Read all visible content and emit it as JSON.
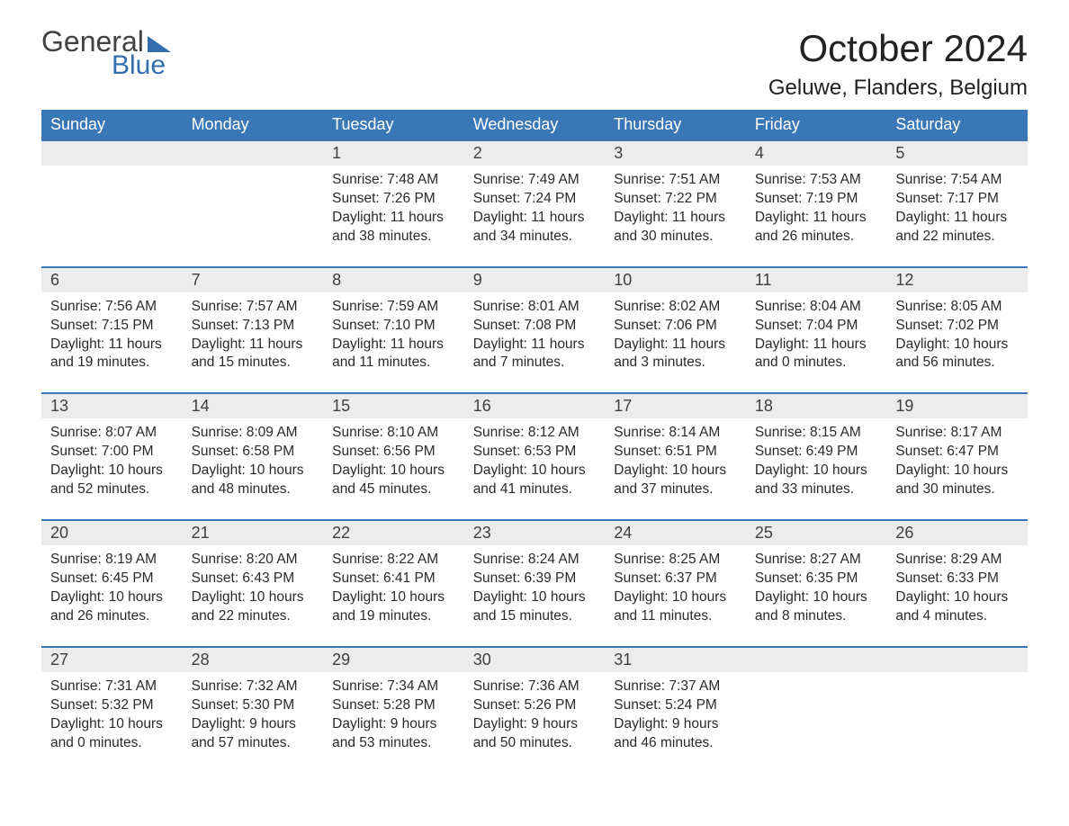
{
  "logo": {
    "line1": "General",
    "line2": "Blue"
  },
  "title": "October 2024",
  "location": "Geluwe, Flanders, Belgium",
  "colors": {
    "header_bg": "#3a77b6",
    "header_text": "#ffffff",
    "daynum_bg": "#ececec",
    "row_divider": "#3a77b6",
    "logo_accent": "#336eaf",
    "body_text": "#2a2a2a",
    "page_bg": "#ffffff"
  },
  "calendar": {
    "type": "table",
    "columns": [
      "Sunday",
      "Monday",
      "Tuesday",
      "Wednesday",
      "Thursday",
      "Friday",
      "Saturday"
    ],
    "start_day_index": 2,
    "days": [
      {
        "n": 1,
        "sunrise": "7:48 AM",
        "sunset": "7:26 PM",
        "daylight": "11 hours and 38 minutes."
      },
      {
        "n": 2,
        "sunrise": "7:49 AM",
        "sunset": "7:24 PM",
        "daylight": "11 hours and 34 minutes."
      },
      {
        "n": 3,
        "sunrise": "7:51 AM",
        "sunset": "7:22 PM",
        "daylight": "11 hours and 30 minutes."
      },
      {
        "n": 4,
        "sunrise": "7:53 AM",
        "sunset": "7:19 PM",
        "daylight": "11 hours and 26 minutes."
      },
      {
        "n": 5,
        "sunrise": "7:54 AM",
        "sunset": "7:17 PM",
        "daylight": "11 hours and 22 minutes."
      },
      {
        "n": 6,
        "sunrise": "7:56 AM",
        "sunset": "7:15 PM",
        "daylight": "11 hours and 19 minutes."
      },
      {
        "n": 7,
        "sunrise": "7:57 AM",
        "sunset": "7:13 PM",
        "daylight": "11 hours and 15 minutes."
      },
      {
        "n": 8,
        "sunrise": "7:59 AM",
        "sunset": "7:10 PM",
        "daylight": "11 hours and 11 minutes."
      },
      {
        "n": 9,
        "sunrise": "8:01 AM",
        "sunset": "7:08 PM",
        "daylight": "11 hours and 7 minutes."
      },
      {
        "n": 10,
        "sunrise": "8:02 AM",
        "sunset": "7:06 PM",
        "daylight": "11 hours and 3 minutes."
      },
      {
        "n": 11,
        "sunrise": "8:04 AM",
        "sunset": "7:04 PM",
        "daylight": "11 hours and 0 minutes."
      },
      {
        "n": 12,
        "sunrise": "8:05 AM",
        "sunset": "7:02 PM",
        "daylight": "10 hours and 56 minutes."
      },
      {
        "n": 13,
        "sunrise": "8:07 AM",
        "sunset": "7:00 PM",
        "daylight": "10 hours and 52 minutes."
      },
      {
        "n": 14,
        "sunrise": "8:09 AM",
        "sunset": "6:58 PM",
        "daylight": "10 hours and 48 minutes."
      },
      {
        "n": 15,
        "sunrise": "8:10 AM",
        "sunset": "6:56 PM",
        "daylight": "10 hours and 45 minutes."
      },
      {
        "n": 16,
        "sunrise": "8:12 AM",
        "sunset": "6:53 PM",
        "daylight": "10 hours and 41 minutes."
      },
      {
        "n": 17,
        "sunrise": "8:14 AM",
        "sunset": "6:51 PM",
        "daylight": "10 hours and 37 minutes."
      },
      {
        "n": 18,
        "sunrise": "8:15 AM",
        "sunset": "6:49 PM",
        "daylight": "10 hours and 33 minutes."
      },
      {
        "n": 19,
        "sunrise": "8:17 AM",
        "sunset": "6:47 PM",
        "daylight": "10 hours and 30 minutes."
      },
      {
        "n": 20,
        "sunrise": "8:19 AM",
        "sunset": "6:45 PM",
        "daylight": "10 hours and 26 minutes."
      },
      {
        "n": 21,
        "sunrise": "8:20 AM",
        "sunset": "6:43 PM",
        "daylight": "10 hours and 22 minutes."
      },
      {
        "n": 22,
        "sunrise": "8:22 AM",
        "sunset": "6:41 PM",
        "daylight": "10 hours and 19 minutes."
      },
      {
        "n": 23,
        "sunrise": "8:24 AM",
        "sunset": "6:39 PM",
        "daylight": "10 hours and 15 minutes."
      },
      {
        "n": 24,
        "sunrise": "8:25 AM",
        "sunset": "6:37 PM",
        "daylight": "10 hours and 11 minutes."
      },
      {
        "n": 25,
        "sunrise": "8:27 AM",
        "sunset": "6:35 PM",
        "daylight": "10 hours and 8 minutes."
      },
      {
        "n": 26,
        "sunrise": "8:29 AM",
        "sunset": "6:33 PM",
        "daylight": "10 hours and 4 minutes."
      },
      {
        "n": 27,
        "sunrise": "7:31 AM",
        "sunset": "5:32 PM",
        "daylight": "10 hours and 0 minutes."
      },
      {
        "n": 28,
        "sunrise": "7:32 AM",
        "sunset": "5:30 PM",
        "daylight": "9 hours and 57 minutes."
      },
      {
        "n": 29,
        "sunrise": "7:34 AM",
        "sunset": "5:28 PM",
        "daylight": "9 hours and 53 minutes."
      },
      {
        "n": 30,
        "sunrise": "7:36 AM",
        "sunset": "5:26 PM",
        "daylight": "9 hours and 50 minutes."
      },
      {
        "n": 31,
        "sunrise": "7:37 AM",
        "sunset": "5:24 PM",
        "daylight": "9 hours and 46 minutes."
      }
    ],
    "labels": {
      "sunrise": "Sunrise:",
      "sunset": "Sunset:",
      "daylight": "Daylight:"
    }
  }
}
